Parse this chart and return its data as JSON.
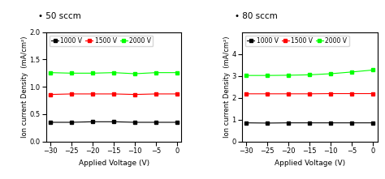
{
  "x_values": [
    -30,
    -25,
    -20,
    -15,
    -10,
    -5,
    0
  ],
  "left_title": "• 50 sccm",
  "right_title": "• 80 sccm",
  "xlabel": "Applied Voltage (V)",
  "ylabel": "Ion current Density  (mA/cm²)",
  "xlim": [
    -31,
    1
  ],
  "xticks": [
    -30,
    -25,
    -20,
    -15,
    -10,
    -5,
    0
  ],
  "left_ylim": [
    0.0,
    2.0
  ],
  "left_yticks": [
    0.0,
    0.5,
    1.0,
    1.5,
    2.0
  ],
  "right_ylim": [
    0,
    5
  ],
  "right_yticks": [
    0,
    1,
    2,
    3,
    4
  ],
  "legend_labels": [
    "1000 V",
    "1500 V",
    "2000 V"
  ],
  "colors": [
    "black",
    "red",
    "lime"
  ],
  "left_1000V": [
    0.35,
    0.35,
    0.36,
    0.36,
    0.35,
    0.35,
    0.35
  ],
  "left_1500V": [
    0.86,
    0.87,
    0.87,
    0.87,
    0.86,
    0.87,
    0.87
  ],
  "left_2000V": [
    1.26,
    1.25,
    1.25,
    1.26,
    1.24,
    1.26,
    1.26
  ],
  "right_1000V": [
    0.85,
    0.84,
    0.85,
    0.85,
    0.85,
    0.85,
    0.85
  ],
  "right_1500V": [
    2.18,
    2.18,
    2.18,
    2.18,
    2.19,
    2.19,
    2.19
  ],
  "right_2000V": [
    3.02,
    3.02,
    3.03,
    3.05,
    3.1,
    3.18,
    3.27
  ],
  "marker": "s",
  "markersize": 3,
  "linewidth": 0.8,
  "background_color": "#ffffff",
  "title_fontsize": 7.5,
  "label_fontsize": 6.5,
  "tick_fontsize": 6,
  "legend_fontsize": 5.5
}
